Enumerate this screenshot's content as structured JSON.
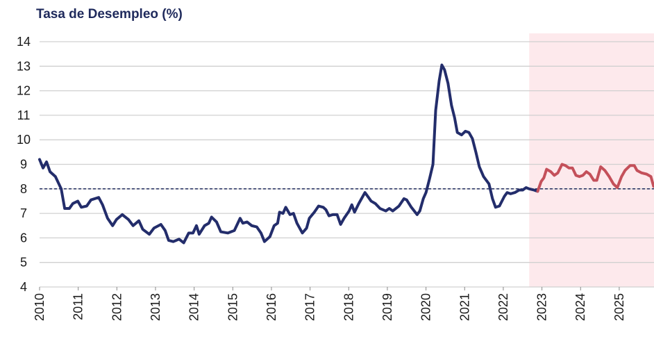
{
  "chart_data": {
    "type": "line",
    "title": "Tasa de Desempleo (%)",
    "xlim": [
      2010,
      2025.9
    ],
    "xticks": [
      2010,
      2011,
      2012,
      2013,
      2014,
      2015,
      2016,
      2017,
      2018,
      2019,
      2020,
      2021,
      2022,
      2023,
      2024,
      2025
    ],
    "ylim": [
      4,
      14
    ],
    "yticks": [
      4,
      5,
      6,
      7,
      8,
      9,
      10,
      11,
      12,
      13,
      14
    ],
    "grid": true,
    "reference_line": 8,
    "reference_color": "#1f2a5c",
    "forecast_region": [
      2022.67,
      2025.9
    ],
    "forecast_color": "#fde9ec",
    "series": [
      {
        "color": "#232d6b",
        "x": [
          2010.0,
          2010.09,
          2010.18,
          2010.27,
          2010.41,
          2010.56,
          2010.65,
          2010.77,
          2010.86,
          2010.99,
          2011.08,
          2011.22,
          2011.33,
          2011.53,
          2011.63,
          2011.76,
          2011.89,
          2011.99,
          2012.14,
          2012.3,
          2012.42,
          2012.57,
          2012.67,
          2012.84,
          2012.96,
          2013.14,
          2013.25,
          2013.34,
          2013.46,
          2013.61,
          2013.73,
          2013.86,
          2013.97,
          2014.06,
          2014.13,
          2014.27,
          2014.38,
          2014.45,
          2014.58,
          2014.69,
          2014.87,
          2015.04,
          2015.19,
          2015.26,
          2015.37,
          2015.49,
          2015.62,
          2015.73,
          2015.82,
          2015.96,
          2016.07,
          2016.16,
          2016.21,
          2016.3,
          2016.37,
          2016.48,
          2016.57,
          2016.66,
          2016.8,
          2016.91,
          2016.98,
          2017.11,
          2017.22,
          2017.34,
          2017.41,
          2017.49,
          2017.59,
          2017.7,
          2017.79,
          2017.88,
          2018.01,
          2018.08,
          2018.15,
          2018.26,
          2018.42,
          2018.49,
          2018.58,
          2018.69,
          2018.81,
          2018.96,
          2019.05,
          2019.14,
          2019.3,
          2019.43,
          2019.5,
          2019.62,
          2019.77,
          2019.84,
          2019.93,
          2020.0,
          2020.09,
          2020.18,
          2020.25,
          2020.34,
          2020.41,
          2020.48,
          2020.57,
          2020.66,
          2020.74,
          2020.81,
          2020.92,
          2021.02,
          2021.11,
          2021.2,
          2021.29,
          2021.38,
          2021.49,
          2021.63,
          2021.72,
          2021.8,
          2021.9,
          2022.03,
          2022.1,
          2022.19,
          2022.3,
          2022.41,
          2022.5,
          2022.59,
          2022.67,
          2022.8,
          2022.89
        ],
        "values": [
          9.2,
          8.85,
          9.1,
          8.7,
          8.5,
          8.0,
          7.2,
          7.2,
          7.4,
          7.5,
          7.25,
          7.3,
          7.55,
          7.65,
          7.35,
          6.8,
          6.5,
          6.75,
          6.95,
          6.75,
          6.5,
          6.7,
          6.35,
          6.15,
          6.4,
          6.55,
          6.3,
          5.9,
          5.85,
          5.95,
          5.8,
          6.2,
          6.2,
          6.5,
          6.15,
          6.5,
          6.6,
          6.85,
          6.65,
          6.25,
          6.2,
          6.3,
          6.8,
          6.6,
          6.65,
          6.5,
          6.45,
          6.2,
          5.85,
          6.05,
          6.5,
          6.6,
          7.05,
          7.0,
          7.25,
          6.95,
          7.0,
          6.6,
          6.2,
          6.4,
          6.8,
          7.05,
          7.3,
          7.25,
          7.15,
          6.9,
          6.95,
          6.95,
          6.55,
          6.8,
          7.1,
          7.35,
          7.05,
          7.4,
          7.85,
          7.7,
          7.5,
          7.4,
          7.2,
          7.1,
          7.2,
          7.1,
          7.3,
          7.6,
          7.55,
          7.25,
          6.95,
          7.1,
          7.6,
          7.85,
          8.4,
          9.0,
          11.2,
          12.4,
          13.05,
          12.85,
          12.3,
          11.4,
          10.9,
          10.3,
          10.2,
          10.35,
          10.3,
          10.05,
          9.5,
          8.9,
          8.5,
          8.2,
          7.6,
          7.25,
          7.3,
          7.7,
          7.85,
          7.8,
          7.85,
          7.95,
          7.95,
          8.05,
          8.0,
          7.95,
          7.9
        ]
      },
      {
        "color": "#c4505a",
        "x": [
          2022.89,
          2022.98,
          2023.05,
          2023.12,
          2023.23,
          2023.32,
          2023.41,
          2023.52,
          2023.61,
          2023.7,
          2023.79,
          2023.88,
          2023.97,
          2024.06,
          2024.15,
          2024.24,
          2024.34,
          2024.42,
          2024.52,
          2024.63,
          2024.74,
          2024.85,
          2024.95,
          2025.06,
          2025.15,
          2025.28,
          2025.39,
          2025.46,
          2025.58,
          2025.71,
          2025.82,
          2025.89
        ],
        "values": [
          7.9,
          8.3,
          8.45,
          8.8,
          8.7,
          8.55,
          8.65,
          9.0,
          8.95,
          8.85,
          8.85,
          8.55,
          8.5,
          8.55,
          8.7,
          8.6,
          8.35,
          8.35,
          8.9,
          8.75,
          8.5,
          8.2,
          8.05,
          8.5,
          8.75,
          8.95,
          8.95,
          8.75,
          8.65,
          8.6,
          8.5,
          8.1
        ]
      }
    ]
  }
}
